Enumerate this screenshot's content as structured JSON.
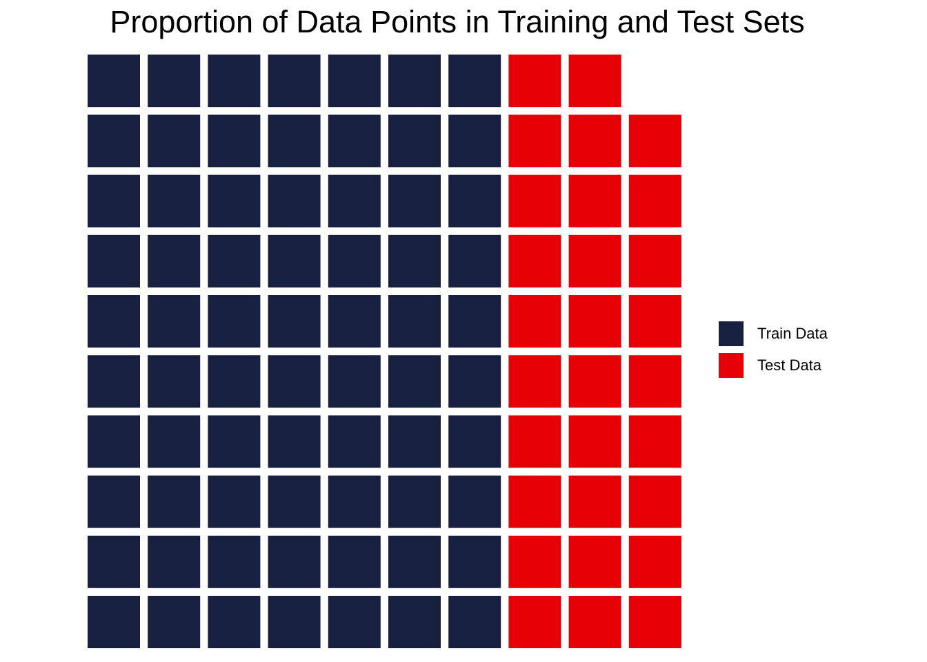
{
  "chart_data": {
    "type": "waffle",
    "title": "Proportion of Data Points in Training and Test Sets",
    "grid": {
      "rows": 10,
      "cols": 10,
      "total": 99
    },
    "categories": [
      "Train Data",
      "Test Data"
    ],
    "values": [
      70,
      29
    ],
    "colors": {
      "Train Data": "#182040",
      "Test Data": "#e60005"
    },
    "legend_position": "right",
    "legend": [
      {
        "label": "Train Data",
        "color": "#182040"
      },
      {
        "label": "Test Data",
        "color": "#e60005"
      }
    ]
  }
}
